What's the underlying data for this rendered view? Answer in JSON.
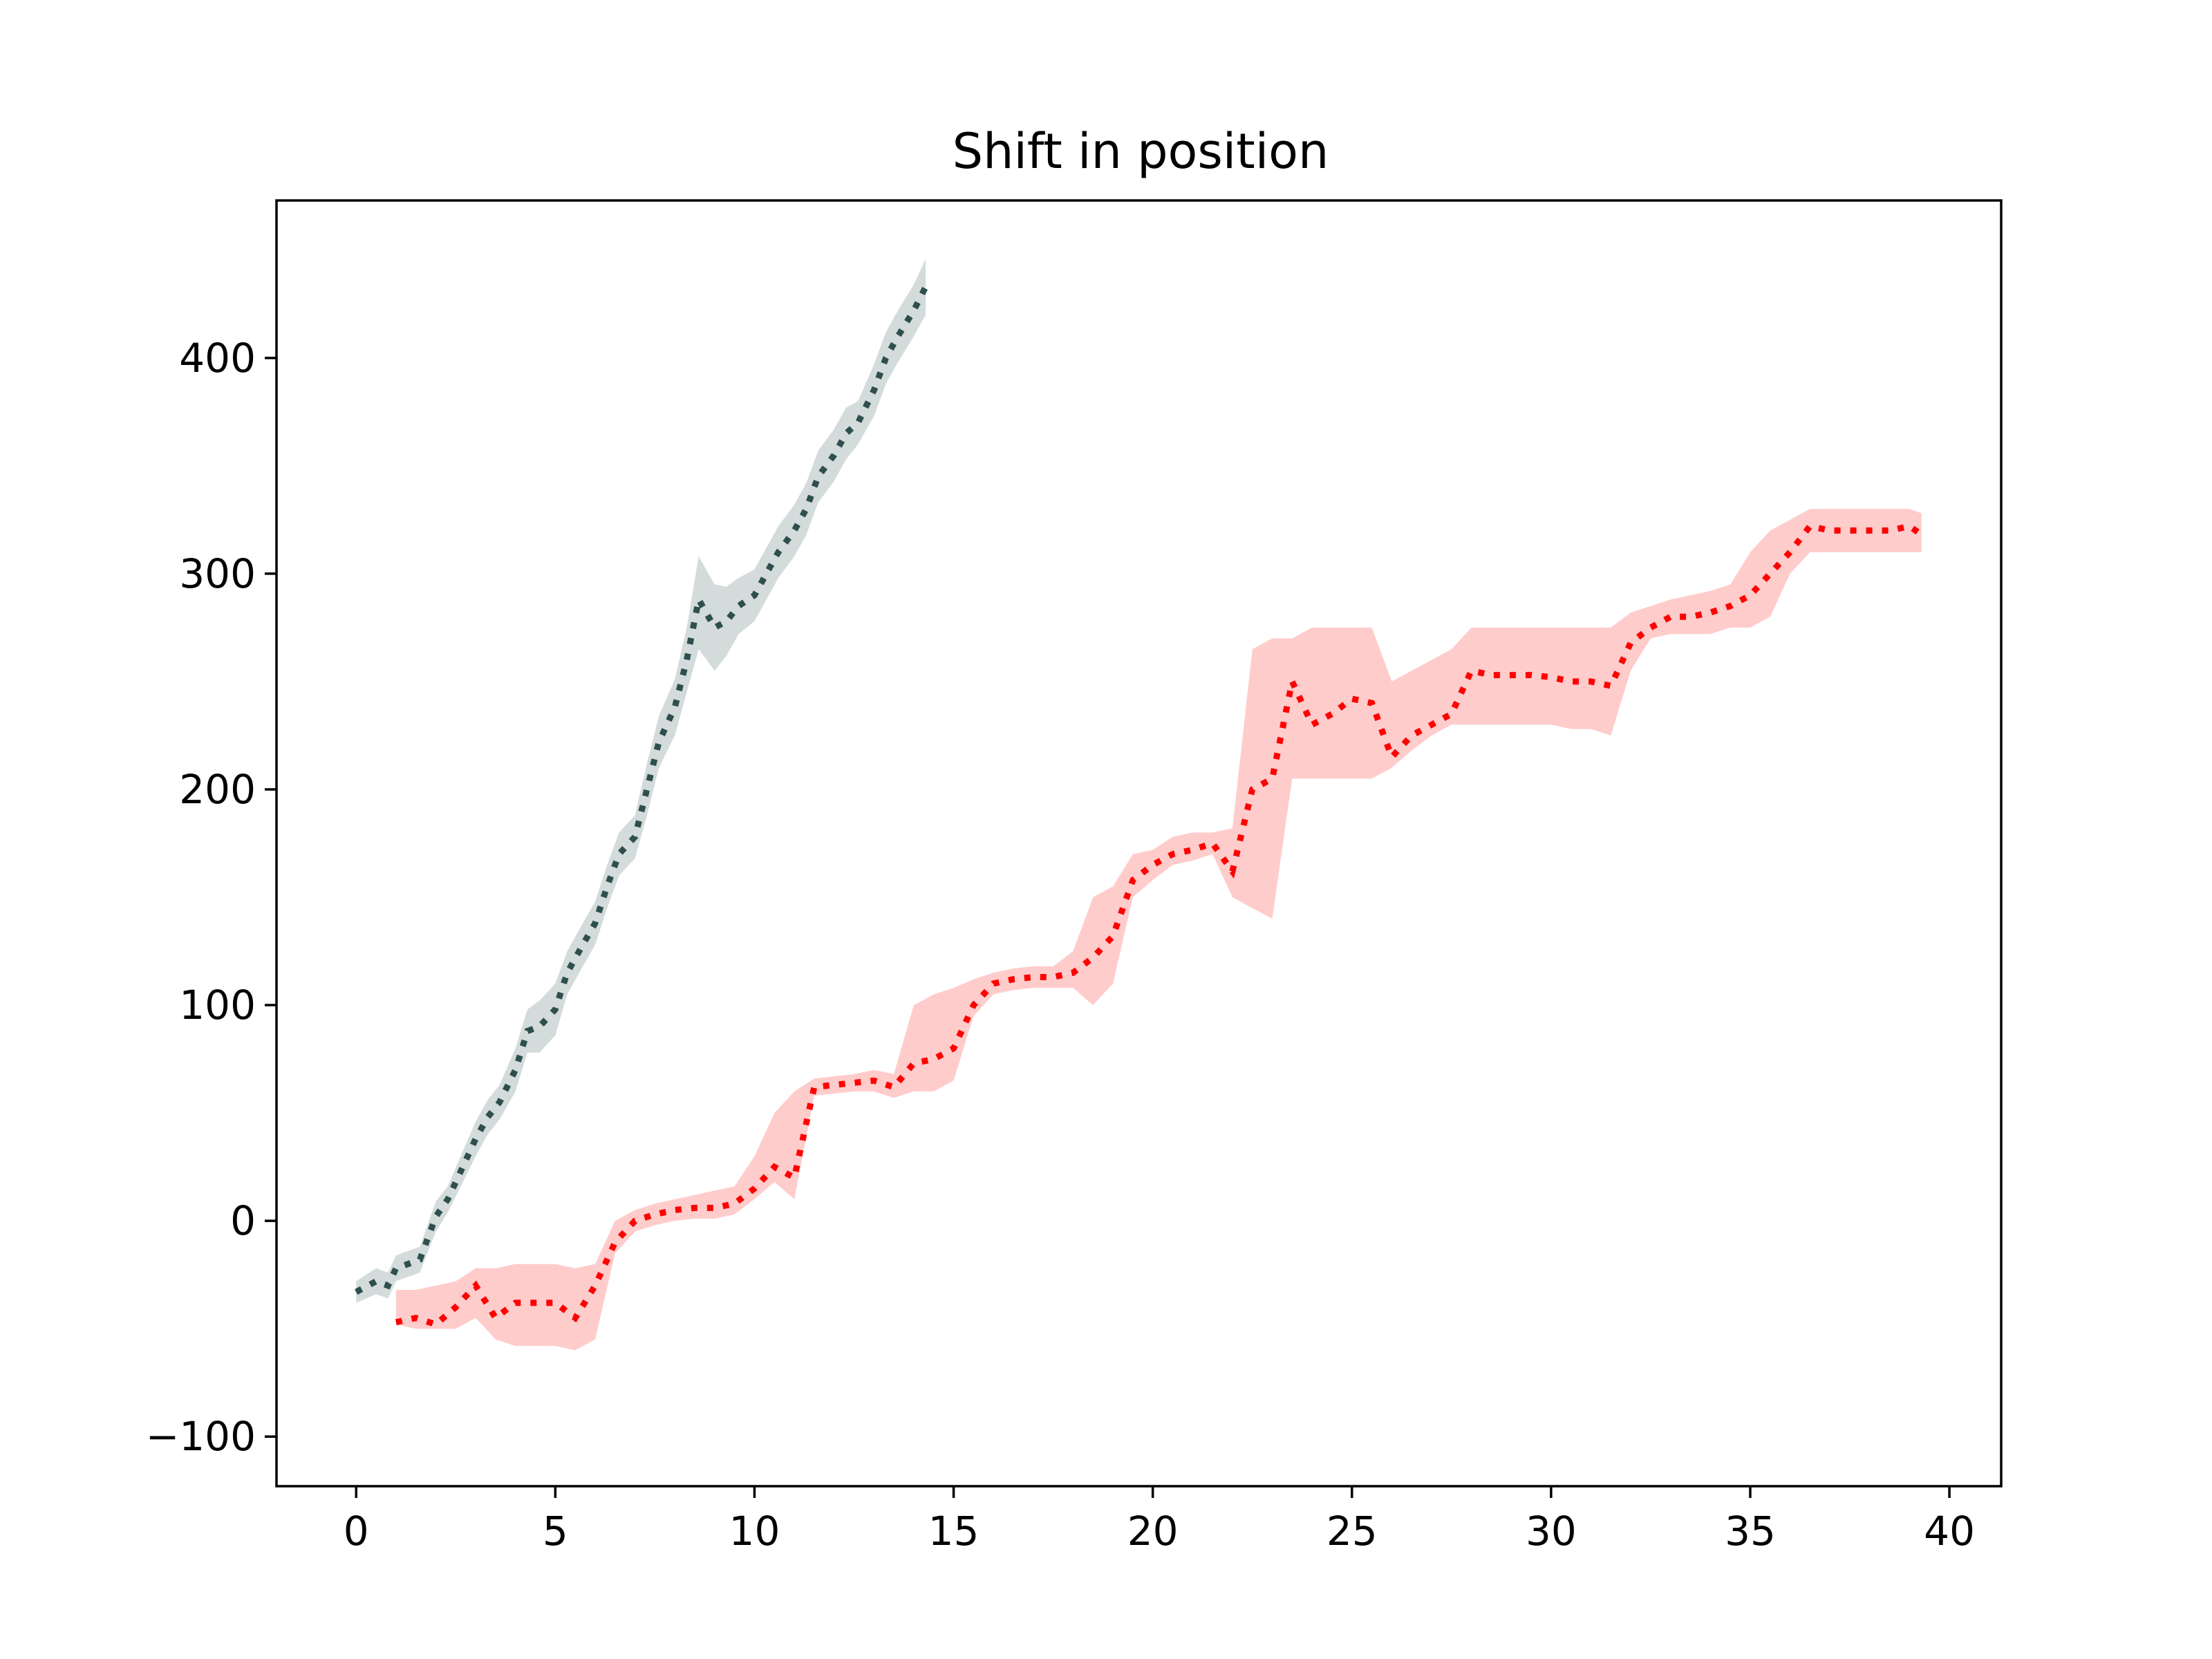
{
  "chart_data": {
    "type": "line",
    "title": "Shift in position",
    "xlabel": "",
    "ylabel": "",
    "xlim": [
      -2,
      41.3
    ],
    "ylim": [
      -123,
      473
    ],
    "xticks": [
      0,
      5,
      10,
      15,
      20,
      25,
      30,
      35,
      40
    ],
    "yticks": [
      -100,
      0,
      100,
      200,
      300,
      400
    ],
    "xtick_labels": [
      "0",
      "5",
      "10",
      "15",
      "20",
      "25",
      "30",
      "35",
      "40"
    ],
    "ytick_labels": [
      "−100",
      "0",
      "100",
      "200",
      "300",
      "400"
    ],
    "grid": false,
    "legend": "none",
    "series": [
      {
        "color": "#2f4f4f",
        "band_color": "#d3dcdb",
        "line_style": "dotted",
        "x": [
          0.0,
          0.5,
          0.8,
          1.0,
          1.3,
          1.6,
          2.0,
          2.3,
          2.6,
          3.0,
          3.3,
          3.6,
          4.0,
          4.3,
          4.6,
          5.0,
          5.3,
          5.6,
          6.0,
          6.3,
          6.6,
          7.0,
          7.3,
          7.6,
          8.0,
          8.3,
          8.6,
          9.0,
          9.3,
          9.6,
          10.0,
          10.3,
          10.6,
          11.0,
          11.3,
          11.6,
          12.0,
          12.3,
          12.6,
          13.0,
          13.3,
          13.6,
          14.0,
          14.3
        ],
        "y": [
          -33,
          -28,
          -30,
          -22,
          -20,
          -18,
          2,
          10,
          22,
          38,
          48,
          55,
          70,
          88,
          90,
          98,
          115,
          125,
          138,
          155,
          170,
          178,
          200,
          222,
          238,
          260,
          288,
          275,
          278,
          285,
          290,
          300,
          310,
          320,
          330,
          345,
          355,
          365,
          370,
          385,
          400,
          410,
          422,
          433
        ],
        "lower": [
          -38,
          -34,
          -36,
          -28,
          -26,
          -24,
          -5,
          4,
          15,
          30,
          40,
          47,
          60,
          78,
          78,
          86,
          105,
          115,
          128,
          145,
          160,
          168,
          188,
          210,
          225,
          245,
          265,
          255,
          262,
          272,
          278,
          288,
          298,
          308,
          318,
          333,
          343,
          353,
          360,
          373,
          388,
          398,
          410,
          420
        ],
        "upper": [
          -28,
          -22,
          -24,
          -16,
          -14,
          -12,
          9,
          16,
          29,
          46,
          56,
          63,
          80,
          98,
          102,
          110,
          125,
          135,
          148,
          165,
          180,
          188,
          212,
          234,
          251,
          275,
          308,
          295,
          294,
          298,
          302,
          312,
          322,
          332,
          342,
          357,
          367,
          377,
          380,
          397,
          412,
          422,
          434,
          446
        ]
      },
      {
        "color": "#ff0000",
        "band_color": "#ffcccc",
        "line_style": "dotted",
        "x": [
          1.0,
          1.5,
          2.0,
          2.5,
          3.0,
          3.5,
          4.0,
          4.5,
          5.0,
          5.5,
          6.0,
          6.5,
          7.0,
          7.5,
          8.0,
          8.5,
          9.0,
          9.5,
          10.0,
          10.5,
          11.0,
          11.5,
          12.0,
          12.5,
          13.0,
          13.5,
          14.0,
          14.5,
          15.0,
          15.5,
          16.0,
          16.5,
          17.0,
          17.5,
          18.0,
          18.5,
          19.0,
          19.5,
          20.0,
          20.5,
          21.0,
          21.5,
          22.0,
          22.5,
          23.0,
          23.5,
          24.0,
          24.5,
          25.0,
          25.5,
          26.0,
          26.5,
          27.0,
          27.5,
          28.0,
          28.5,
          29.0,
          29.5,
          30.0,
          30.5,
          31.0,
          31.5,
          32.0,
          32.5,
          33.0,
          33.5,
          34.0,
          34.5,
          35.0,
          35.5,
          36.0,
          36.5,
          37.0,
          37.5,
          38.0,
          38.5,
          39.0,
          39.3
        ],
        "y": [
          -47,
          -45,
          -48,
          -40,
          -30,
          -45,
          -38,
          -38,
          -38,
          -45,
          -30,
          -10,
          0,
          3,
          5,
          6,
          6,
          8,
          15,
          25,
          20,
          62,
          63,
          64,
          65,
          62,
          73,
          75,
          80,
          100,
          110,
          112,
          113,
          113,
          115,
          122,
          132,
          158,
          165,
          170,
          172,
          175,
          162,
          200,
          205,
          250,
          230,
          235,
          242,
          240,
          215,
          225,
          230,
          235,
          255,
          253,
          253,
          253,
          252,
          250,
          250,
          248,
          268,
          275,
          280,
          280,
          282,
          285,
          290,
          300,
          310,
          322,
          320,
          320,
          320,
          320,
          322,
          318
        ],
        "lower": [
          -48,
          -50,
          -50,
          -50,
          -45,
          -55,
          -58,
          -58,
          -58,
          -60,
          -55,
          -15,
          -5,
          -2,
          0,
          1,
          1,
          3,
          10,
          18,
          10,
          58,
          59,
          60,
          60,
          57,
          60,
          60,
          65,
          95,
          105,
          107,
          108,
          108,
          108,
          100,
          110,
          150,
          158,
          165,
          167,
          170,
          150,
          145,
          140,
          205,
          205,
          205,
          205,
          205,
          210,
          218,
          225,
          230,
          230,
          230,
          230,
          230,
          230,
          228,
          228,
          225,
          255,
          270,
          272,
          272,
          272,
          275,
          275,
          280,
          300,
          310,
          310,
          310,
          310,
          310,
          310,
          310
        ],
        "upper": [
          -32,
          -32,
          -30,
          -28,
          -22,
          -22,
          -20,
          -20,
          -20,
          -22,
          -20,
          0,
          5,
          8,
          10,
          12,
          14,
          16,
          30,
          50,
          60,
          66,
          67,
          68,
          70,
          68,
          100,
          105,
          108,
          112,
          115,
          117,
          118,
          118,
          125,
          150,
          155,
          170,
          172,
          178,
          180,
          180,
          182,
          265,
          270,
          270,
          275,
          275,
          275,
          275,
          250,
          255,
          260,
          265,
          275,
          275,
          275,
          275,
          275,
          275,
          275,
          275,
          282,
          285,
          288,
          290,
          292,
          295,
          310,
          320,
          325,
          330,
          330,
          330,
          330,
          330,
          330,
          328
        ]
      }
    ]
  }
}
